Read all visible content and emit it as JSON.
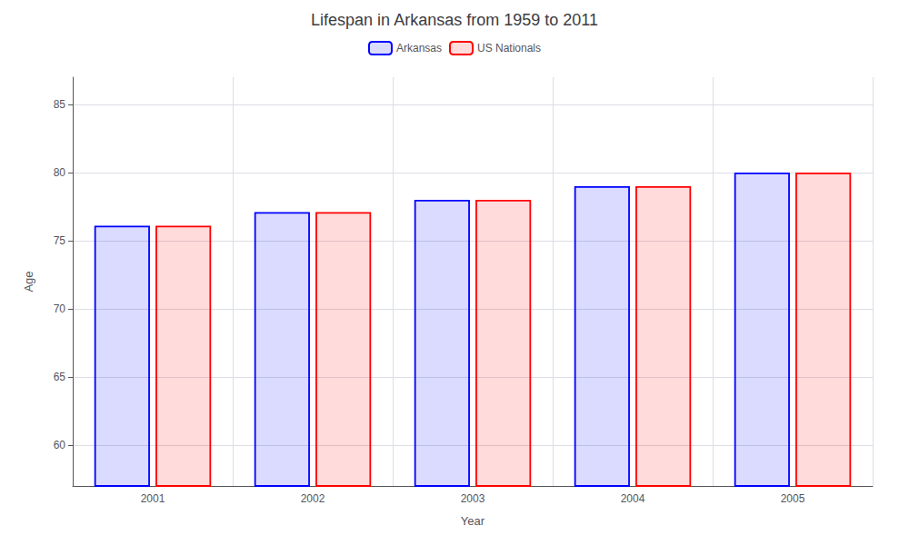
{
  "chart_data": {
    "type": "bar",
    "title": "Lifespan in Arkansas from 1959 to 2011",
    "xlabel": "Year",
    "ylabel": "Age",
    "categories": [
      "2001",
      "2002",
      "2003",
      "2004",
      "2005"
    ],
    "series": [
      {
        "name": "Arkansas",
        "color": "#0000ff",
        "values": [
          76.1,
          77.1,
          78.0,
          79.0,
          80.0
        ]
      },
      {
        "name": "US Nationals",
        "color": "#ff0000",
        "values": [
          76.1,
          77.1,
          78.0,
          79.0,
          80.0
        ]
      }
    ],
    "ylim": [
      57,
      87
    ],
    "yticks": [
      60,
      65,
      70,
      75,
      80,
      85
    ],
    "grid": true,
    "legend": "top"
  }
}
